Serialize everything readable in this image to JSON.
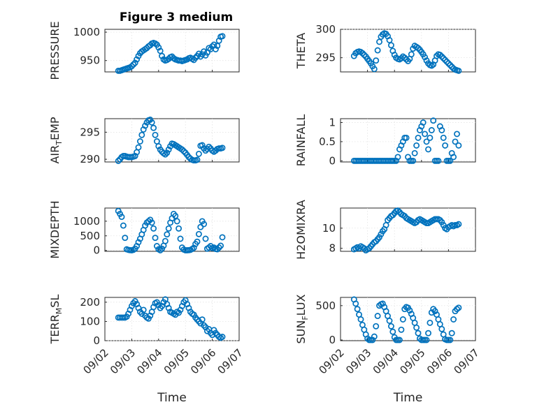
{
  "figure_title": "Figure 3 medium",
  "color": "#0072BD",
  "chart_data": [
    {
      "type": "scatter",
      "title": "Figure 3 medium",
      "ylabel": "PRESSURE",
      "ylabel_main": "PRESSURE",
      "ylabel_sub": "",
      "ylabel_rest": "",
      "xlabel": "",
      "ylim": [
        930,
        1005
      ],
      "yticks": [
        950,
        1000
      ],
      "ytick_labels": [
        "950",
        "1000"
      ],
      "xlim": [
        "2021-09-02",
        "2021-09-07"
      ],
      "x_start": "2021-09-02T12:00",
      "x_end": "2021-09-06T09:00",
      "y": [
        932,
        932,
        933,
        934,
        935,
        936,
        937,
        938,
        940,
        943,
        946,
        952,
        958,
        963,
        966,
        968,
        970,
        972,
        975,
        977,
        980,
        981,
        980,
        978,
        973,
        967,
        958,
        952,
        950,
        951,
        953,
        956,
        957,
        954,
        952,
        951,
        950,
        950,
        949,
        950,
        951,
        952,
        954,
        955,
        953,
        951,
        955,
        958,
        962,
        957,
        961,
        966,
        959,
        964,
        972,
        970,
        975,
        978,
        970,
        976,
        985,
        992,
        993
      ]
    },
    {
      "type": "scatter",
      "title": "",
      "ylabel": "THETA",
      "ylabel_main": "THETA",
      "ylabel_sub": "",
      "ylabel_rest": "",
      "xlabel": "",
      "ylim": [
        292.5,
        300
      ],
      "yticks": [
        295,
        300
      ],
      "ytick_labels": [
        "295",
        "300"
      ],
      "xlim": [
        "2021-09-02",
        "2021-09-07"
      ],
      "x_start": "2021-09-02T12:00",
      "x_end": "2021-09-06T09:00",
      "y": [
        295.3,
        295.8,
        296.0,
        296.1,
        296.0,
        295.8,
        295.5,
        295.2,
        294.8,
        294.4,
        294.0,
        293.5,
        293.0,
        294.5,
        296.3,
        297.8,
        298.7,
        299.1,
        299.3,
        299.2,
        298.8,
        298.1,
        297.2,
        296.2,
        295.5,
        295.0,
        294.8,
        294.7,
        294.9,
        295.2,
        295.0,
        294.7,
        294.4,
        294.8,
        295.6,
        296.6,
        297.1,
        296.9,
        296.7,
        296.4,
        296.0,
        295.6,
        295.1,
        294.5,
        294.0,
        293.7,
        293.6,
        293.8,
        294.5,
        295.3,
        295.6,
        295.5,
        295.2,
        294.9,
        294.6,
        294.3,
        294.0,
        293.7,
        293.4,
        293.1,
        292.9,
        292.8,
        292.7
      ]
    },
    {
      "type": "scatter",
      "title": "",
      "ylabel": "AIRTEMP",
      "ylabel_main": "AIR",
      "ylabel_sub": "T",
      "ylabel_rest": "EMP",
      "xlabel": "",
      "ylim": [
        289.5,
        297.5
      ],
      "yticks": [
        290,
        295
      ],
      "ytick_labels": [
        "290",
        "295"
      ],
      "xlim": [
        "2021-09-02",
        "2021-09-07"
      ],
      "x_start": "2021-09-02T12:00",
      "x_end": "2021-09-06T09:00",
      "y": [
        289.7,
        290.0,
        290.4,
        290.6,
        290.6,
        290.5,
        290.4,
        290.4,
        290.4,
        290.5,
        290.6,
        291.3,
        292.2,
        293.3,
        294.5,
        295.5,
        296.2,
        296.8,
        297.2,
        297.3,
        296.8,
        295.8,
        294.5,
        293.3,
        292.4,
        291.8,
        291.4,
        291.1,
        290.9,
        291.2,
        291.8,
        292.4,
        292.9,
        292.8,
        292.6,
        292.4,
        292.2,
        292.0,
        291.8,
        291.5,
        291.2,
        290.8,
        290.4,
        290.1,
        289.9,
        289.8,
        289.8,
        289.9,
        291.0,
        292.5,
        292.6,
        292.0,
        291.6,
        291.9,
        292.3,
        292.0,
        291.6,
        291.4,
        291.6,
        291.9,
        292.0,
        292.0,
        292.1
      ]
    },
    {
      "type": "scatter",
      "title": "",
      "ylabel": "RAINFALL",
      "ylabel_main": "RAINFALL",
      "ylabel_sub": "",
      "ylabel_rest": "",
      "xlabel": "",
      "ylim": [
        -0.03,
        1.1
      ],
      "yticks": [
        0,
        0.5,
        1
      ],
      "ytick_labels": [
        "0",
        "0.5",
        "1"
      ],
      "xlim": [
        "2021-09-02",
        "2021-09-07"
      ],
      "x_start": "2021-09-02T12:00",
      "x_end": "2021-09-06T09:00",
      "y": [
        0,
        0,
        0,
        0,
        0,
        0,
        0,
        0,
        0,
        0,
        0,
        0,
        0,
        0,
        0,
        0,
        0,
        0,
        0,
        0,
        0,
        0,
        0,
        0,
        0,
        0,
        0.1,
        0.3,
        0.4,
        0.5,
        0.6,
        0.6,
        0.1,
        0,
        0,
        0,
        0.2,
        0.4,
        0.6,
        0.8,
        0.9,
        1.0,
        0.7,
        0.5,
        0.3,
        0.6,
        0.8,
        1.05,
        0,
        0,
        0,
        0.9,
        0.8,
        0.6,
        0.4,
        0,
        0,
        0,
        0.2,
        0.1,
        0.5,
        0.7,
        0.4
      ]
    },
    {
      "type": "scatter",
      "title": "",
      "ylabel": "MIXDEPTH",
      "ylabel_main": "MIXDEPTH",
      "ylabel_sub": "",
      "ylabel_rest": "",
      "xlabel": "",
      "ylim": [
        -30,
        1450
      ],
      "yticks": [
        0,
        500,
        1000
      ],
      "ytick_labels": [
        "0",
        "500",
        "1000"
      ],
      "xlim": [
        "2021-09-02",
        "2021-09-07"
      ],
      "x_start": "2021-09-02T12:00",
      "x_end": "2021-09-06T09:00",
      "y": [
        1350,
        1250,
        1150,
        850,
        430,
        40,
        20,
        10,
        5,
        20,
        60,
        150,
        280,
        400,
        550,
        700,
        850,
        950,
        1000,
        1050,
        950,
        750,
        430,
        150,
        40,
        5,
        60,
        160,
        320,
        550,
        750,
        950,
        1100,
        1250,
        1180,
        1000,
        750,
        400,
        100,
        30,
        5,
        5,
        10,
        20,
        50,
        90,
        220,
        300,
        560,
        800,
        1000,
        900,
        400,
        60,
        100,
        150,
        80,
        100,
        50,
        40,
        100,
        160,
        450
      ]
    },
    {
      "type": "scatter",
      "title": "",
      "ylabel": "H2OMIXRA",
      "ylabel_main": "H2OMIXRA",
      "ylabel_sub": "",
      "ylabel_rest": "",
      "xlabel": "",
      "ylim": [
        7.7,
        12.0
      ],
      "yticks": [
        8,
        10
      ],
      "ytick_labels": [
        "8",
        "10"
      ],
      "xlim": [
        "2021-09-02",
        "2021-09-07"
      ],
      "x_start": "2021-09-02T12:00",
      "x_end": "2021-09-06T09:00",
      "y": [
        7.9,
        8.0,
        8.1,
        8.0,
        8.2,
        8.1,
        8.0,
        7.8,
        7.9,
        8.0,
        8.2,
        8.4,
        8.6,
        8.7,
        8.9,
        9.1,
        9.4,
        9.7,
        9.9,
        10.3,
        10.8,
        11.0,
        11.2,
        11.3,
        11.5,
        11.7,
        11.75,
        11.6,
        11.4,
        11.3,
        11.2,
        11.0,
        10.9,
        10.8,
        10.7,
        10.6,
        10.5,
        10.6,
        10.8,
        10.9,
        10.8,
        10.7,
        10.6,
        10.5,
        10.5,
        10.6,
        10.7,
        10.8,
        10.9,
        10.9,
        10.9,
        10.8,
        10.6,
        10.3,
        10.0,
        9.9,
        10.1,
        10.2,
        10.3,
        10.2,
        10.3,
        10.3,
        10.4
      ]
    },
    {
      "type": "scatter",
      "title": "",
      "ylabel": "TERRMSL",
      "ylabel_main": "TERR",
      "ylabel_sub": "M",
      "ylabel_rest": "SL",
      "xlabel": "Time",
      "ylim": [
        0,
        225
      ],
      "yticks": [
        0,
        100,
        200
      ],
      "ytick_labels": [
        "0",
        "100",
        "200"
      ],
      "xlim": [
        "2021-09-02",
        "2021-09-07"
      ],
      "xticks": [
        "2021-09-02",
        "2021-09-03",
        "2021-09-04",
        "2021-09-05",
        "2021-09-06",
        "2021-09-07"
      ],
      "xtick_labels": [
        "09/02",
        "09/03",
        "09/04",
        "09/05",
        "09/06",
        "09/07"
      ],
      "x_start": "2021-09-02T12:00",
      "x_end": "2021-09-06T09:00",
      "y": [
        120,
        120,
        120,
        120,
        120,
        125,
        140,
        160,
        180,
        195,
        205,
        190,
        170,
        150,
        140,
        160,
        130,
        120,
        115,
        130,
        150,
        175,
        195,
        200,
        185,
        170,
        180,
        200,
        215,
        190,
        170,
        150,
        145,
        140,
        135,
        150,
        145,
        160,
        180,
        200,
        210,
        190,
        170,
        150,
        140,
        135,
        120,
        110,
        100,
        90,
        110,
        80,
        70,
        50,
        60,
        40,
        30,
        55,
        40,
        30,
        20,
        15,
        20
      ]
    },
    {
      "type": "scatter",
      "title": "",
      "ylabel": "SUNFLUX",
      "ylabel_main": "SUN",
      "ylabel_sub": "F",
      "ylabel_rest": "LUX",
      "xlabel": "Time",
      "ylim": [
        -10,
        620
      ],
      "yticks": [
        0,
        500
      ],
      "ytick_labels": [
        "0",
        "500"
      ],
      "xlim": [
        "2021-09-02",
        "2021-09-07"
      ],
      "xticks": [
        "2021-09-02",
        "2021-09-03",
        "2021-09-04",
        "2021-09-05",
        "2021-09-06",
        "2021-09-07"
      ],
      "xtick_labels": [
        "09/02",
        "09/03",
        "09/04",
        "09/05",
        "09/06",
        "09/07"
      ],
      "x_start": "2021-09-02T12:00",
      "x_end": "2021-09-06T09:00",
      "y": [
        590,
        530,
        450,
        370,
        300,
        220,
        150,
        80,
        20,
        0,
        0,
        0,
        50,
        200,
        350,
        500,
        520,
        530,
        480,
        420,
        350,
        280,
        200,
        120,
        40,
        0,
        0,
        0,
        150,
        300,
        450,
        480,
        470,
        430,
        380,
        320,
        250,
        180,
        100,
        20,
        0,
        0,
        0,
        0,
        100,
        250,
        400,
        450,
        420,
        370,
        300,
        230,
        160,
        80,
        10,
        0,
        0,
        0,
        100,
        300,
        420,
        450,
        470
      ]
    }
  ]
}
